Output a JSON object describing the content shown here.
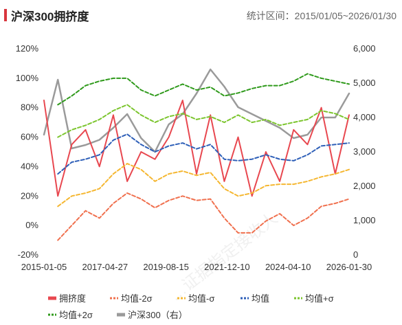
{
  "header": {
    "title": "沪深300拥挤度",
    "period": "统计区间：2015/01/05~2026/01/30"
  },
  "chart_data": {
    "type": "line",
    "x_ticks": [
      "2015-01-05",
      "2017-04-27",
      "2019-08-15",
      "2021-12-10",
      "2024-04-10",
      "2026-01-30"
    ],
    "y_left": {
      "min": -0.2,
      "max": 1.2,
      "ticks": [
        "120%",
        "100%",
        "80%",
        "60%",
        "40%",
        "20%",
        "0%",
        "-20%"
      ]
    },
    "y_right": {
      "min": 0,
      "max": 6000,
      "ticks": [
        "6,000",
        "5,000",
        "4,000",
        "3,000",
        "2,000",
        "1,000",
        "0"
      ]
    },
    "x": [
      2015.0,
      2015.5,
      2016.0,
      2016.5,
      2017.0,
      2017.5,
      2018.0,
      2018.5,
      2019.0,
      2019.5,
      2020.0,
      2020.5,
      2021.0,
      2021.5,
      2022.0,
      2022.5,
      2023.0,
      2023.5,
      2024.0,
      2024.5,
      2025.0,
      2025.5,
      2026.0
    ],
    "series": [
      {
        "name": "拥挤度",
        "axis": "left",
        "color": "#e8474f",
        "style": "solid",
        "values": [
          0.85,
          0.2,
          0.55,
          0.65,
          0.4,
          0.75,
          0.3,
          0.5,
          0.45,
          0.6,
          0.85,
          0.35,
          0.75,
          0.3,
          0.6,
          0.2,
          0.5,
          0.3,
          0.65,
          0.55,
          0.8,
          0.35,
          0.75
        ]
      },
      {
        "name": "均值-2σ",
        "axis": "left",
        "color": "#f0704e",
        "style": "dash",
        "values": [
          null,
          -0.1,
          0.0,
          0.1,
          0.05,
          0.15,
          0.22,
          0.18,
          0.12,
          0.17,
          0.2,
          0.17,
          0.18,
          0.05,
          -0.05,
          -0.05,
          0.03,
          0.08,
          0.0,
          0.05,
          0.13,
          0.15,
          0.18
        ]
      },
      {
        "name": "均值-σ",
        "axis": "left",
        "color": "#f5b731",
        "style": "dash",
        "values": [
          null,
          0.13,
          0.2,
          0.22,
          0.25,
          0.35,
          0.42,
          0.38,
          0.3,
          0.35,
          0.37,
          0.34,
          0.36,
          0.25,
          0.2,
          0.22,
          0.27,
          0.28,
          0.28,
          0.3,
          0.33,
          0.35,
          0.38
        ]
      },
      {
        "name": "均值",
        "axis": "left",
        "color": "#2e5fb8",
        "style": "dash",
        "values": [
          null,
          0.35,
          0.43,
          0.45,
          0.48,
          0.58,
          0.62,
          0.55,
          0.5,
          0.54,
          0.56,
          0.52,
          0.55,
          0.45,
          0.44,
          0.45,
          0.48,
          0.45,
          0.44,
          0.48,
          0.54,
          0.55,
          0.56
        ]
      },
      {
        "name": "均值+σ",
        "axis": "left",
        "color": "#7cc52e",
        "style": "dash",
        "values": [
          null,
          0.6,
          0.65,
          0.68,
          0.72,
          0.78,
          0.82,
          0.75,
          0.7,
          0.74,
          0.76,
          0.72,
          0.74,
          0.7,
          0.75,
          0.7,
          0.72,
          0.68,
          0.7,
          0.72,
          0.78,
          0.76,
          0.72
        ]
      },
      {
        "name": "均值+2σ",
        "axis": "left",
        "color": "#2f9a1b",
        "style": "dash",
        "values": [
          null,
          0.82,
          0.88,
          0.95,
          0.98,
          1.0,
          1.0,
          0.92,
          0.88,
          0.92,
          0.96,
          0.92,
          0.94,
          0.88,
          0.9,
          0.93,
          0.95,
          0.95,
          0.98,
          1.03,
          1.0,
          0.98,
          0.96
        ]
      },
      {
        "name": "沪深300（右）",
        "axis": "right",
        "color": "#9a9a9a",
        "style": "solid",
        "values": [
          3500,
          5100,
          3100,
          3200,
          3350,
          3700,
          4100,
          3400,
          3000,
          3800,
          4100,
          4700,
          5400,
          4900,
          4300,
          4100,
          3900,
          3700,
          3400,
          3500,
          4000,
          4000,
          4700
        ]
      }
    ],
    "legend": "bottom"
  },
  "watermark": "…证据指定接收人"
}
